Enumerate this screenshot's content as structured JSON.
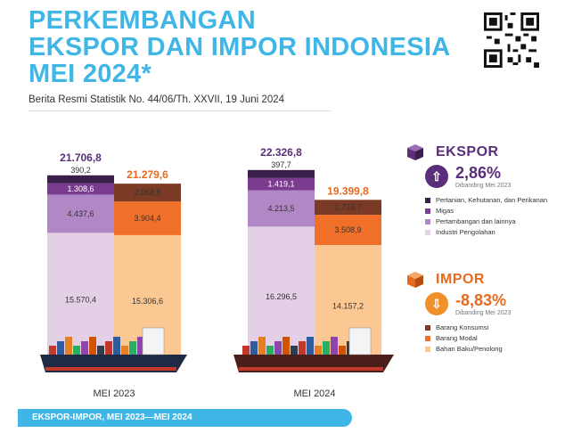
{
  "header": {
    "title_line1": "PERKEMBANGAN",
    "title_line2": "EKSPOR DAN IMPOR INDONESIA",
    "title_line3": "MEI 2024*",
    "subtitle": "Berita Resmi Statistik No. 44/06/Th. XXVII, 19 Juni 2024"
  },
  "colors": {
    "accent": "#3fb6e6",
    "export_pertanian": "#3a1f4a",
    "export_migas": "#7b3b8e",
    "export_pertambangan": "#b187c6",
    "export_industri": "#e3cfe6",
    "import_konsumsi": "#7a3a23",
    "import_modal": "#f0702a",
    "import_baku": "#fbc893",
    "export_total_text": "#5a2e7a",
    "import_total_text": "#e86a1f"
  },
  "chart_data": {
    "type": "bar",
    "stacked": true,
    "categories": [
      "MEI 2023",
      "MEI 2024"
    ],
    "groups": [
      {
        "name": "EKSPOR",
        "totals": [
          "21.706,8",
          "22.326,8"
        ],
        "series": [
          {
            "name": "Industri Pengolahan",
            "values": [
              15570.4,
              16296.5
            ],
            "labels": [
              "15.570,4",
              "16.296,5"
            ]
          },
          {
            "name": "Pertambangan dan lainnya",
            "values": [
              4437.6,
              4213.5
            ],
            "labels": [
              "4.437,6",
              "4.213,5"
            ]
          },
          {
            "name": "Migas",
            "values": [
              1308.6,
              1419.1
            ],
            "labels": [
              "1.308,6",
              "1.419,1"
            ]
          },
          {
            "name": "Pertanian, Kehutanan, dan Perikanan",
            "values": [
              390.2,
              397.7
            ],
            "labels": [
              "390,2",
              "397,7"
            ]
          }
        ]
      },
      {
        "name": "IMPOR",
        "totals": [
          "21.279,6",
          "19.399,8"
        ],
        "series": [
          {
            "name": "Bahan Baku/Penolong",
            "values": [
              15306.6,
              14157.2
            ],
            "labels": [
              "15.306,6",
              "14.157,2"
            ]
          },
          {
            "name": "Barang Modal",
            "values": [
              3904.4,
              3508.9
            ],
            "labels": [
              "3.904,4",
              "3.508,9"
            ]
          },
          {
            "name": "Barang Konsumsi",
            "values": [
              2068.6,
              1733.7
            ],
            "labels": [
              "2.068,6",
              "1.733,7"
            ]
          }
        ]
      }
    ],
    "ylim": [
      0,
      23000
    ]
  },
  "legend": {
    "ekspor": {
      "title": "EKSPOR",
      "pct": "2,86%",
      "note": "Dibanding Mei 2023",
      "items": [
        "Pertanian, Kehutanan, dan Perikanan",
        "Migas",
        "Pertambangan dan lainnya",
        "Industri Pengolahan"
      ]
    },
    "impor": {
      "title": "IMPOR",
      "pct": "-8,83%",
      "note": "Dibanding Mei 2023",
      "items": [
        "Barang Konsumsi",
        "Barang Modal",
        "Bahan Baku/Penolong"
      ]
    }
  },
  "footer": {
    "text": "EKSPOR-IMPOR, MEI 2023—MEI 2024"
  }
}
